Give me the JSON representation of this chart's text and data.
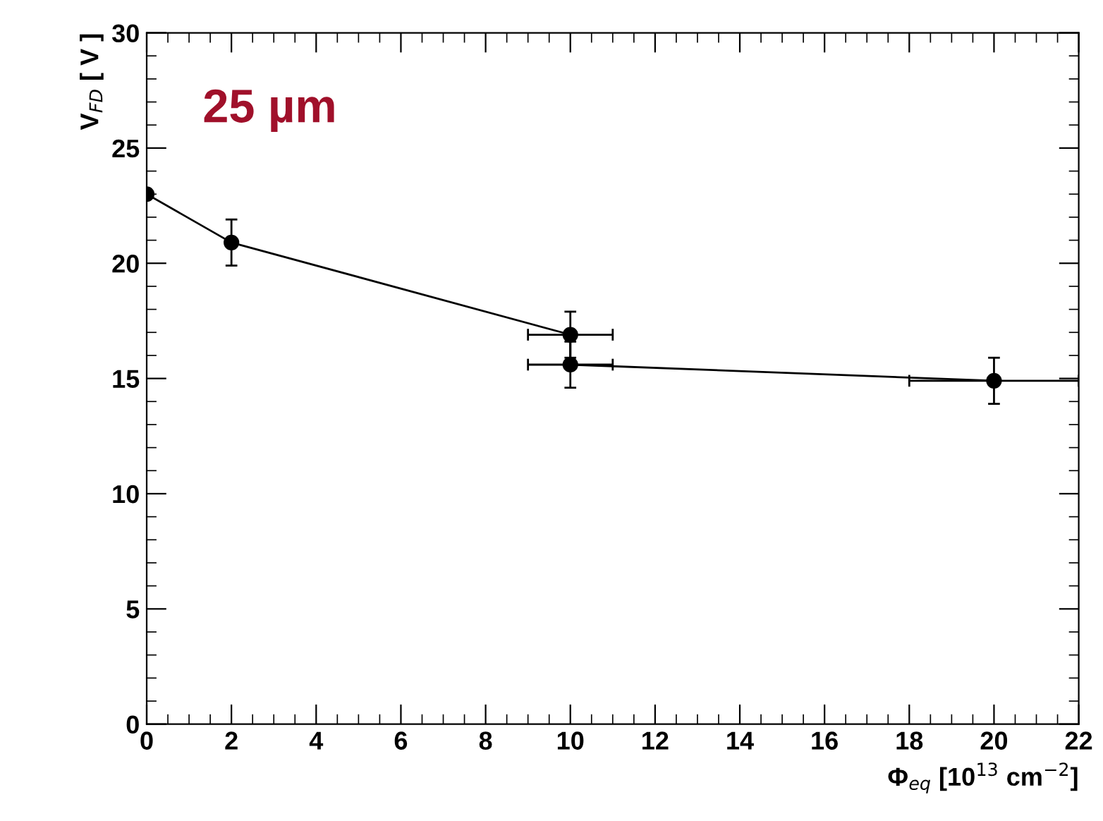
{
  "chart_data": {
    "type": "line",
    "xlabel": "Φ$_{eq}$ [10$^{13}$ cm$^{−2}$]",
    "ylabel": "V$_{FD}$ [ V ]",
    "annotations": [
      "25 µm"
    ],
    "x": [
      0,
      2,
      10,
      10,
      20
    ],
    "series": [
      {
        "color": "#000000",
        "values": [
          23,
          20.9,
          16.9,
          15.6,
          14.9
        ],
        "errors": [
          null,
          1,
          1,
          1,
          1
        ],
        "xerrors": [
          null,
          null,
          1,
          1,
          2
        ]
      }
    ],
    "xlim": [
      0,
      22
    ],
    "xticks": [
      0,
      2,
      4,
      6,
      8,
      10,
      12,
      14,
      16,
      18,
      20,
      22
    ],
    "ylim": [
      0,
      30
    ],
    "yticks": [
      0,
      5,
      10,
      15,
      20,
      25,
      30
    ],
    "grid": false,
    "legend": false,
    "marker": "circle",
    "line_style": "solid"
  }
}
